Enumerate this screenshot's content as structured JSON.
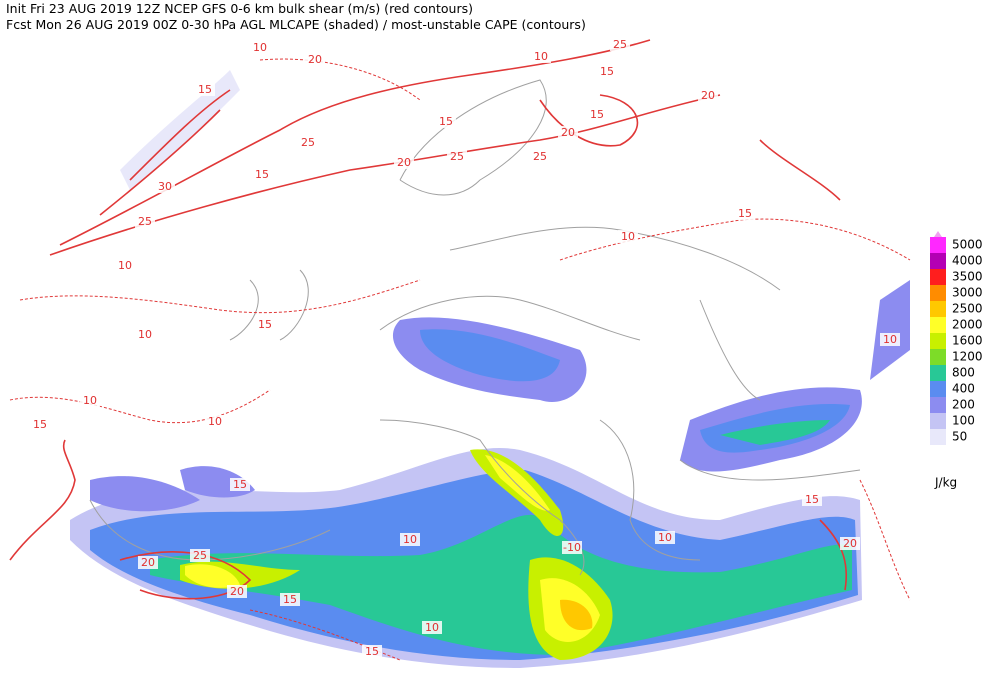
{
  "header": {
    "line1": "Init  Fri 23 AUG 2019 12Z   NCEP GFS 0-6 km bulk shear (m/s) (red contours)",
    "line2": "Fcst Mon 26 AUG 2019 00Z  0-30 hPa AGL MLCAPE (shaded) / most-unstable CAPE (contours)"
  },
  "legend": {
    "levels": [
      50,
      100,
      200,
      400,
      800,
      1200,
      1600,
      2000,
      2500,
      3000,
      3500,
      4000,
      5000
    ],
    "colors": [
      "#e8e8fa",
      "#c4c4f4",
      "#8c8cf0",
      "#5a8cf0",
      "#28c896",
      "#7ddc28",
      "#c8f000",
      "#ffff28",
      "#ffc800",
      "#ff8c00",
      "#ff1e1e",
      "#b400b4",
      "#ff28ff"
    ],
    "top_color": "#f0a0f0",
    "unit": "J/kg"
  },
  "contour_labels": [
    10,
    15,
    25,
    20,
    20,
    15,
    25,
    25,
    15,
    20,
    25,
    15,
    30,
    25,
    10,
    15,
    10,
    15,
    10,
    10,
    15,
    10,
    15,
    10,
    -10,
    10,
    15,
    20,
    20,
    25,
    20,
    15,
    10,
    15,
    10,
    20,
    15,
    10
  ]
}
